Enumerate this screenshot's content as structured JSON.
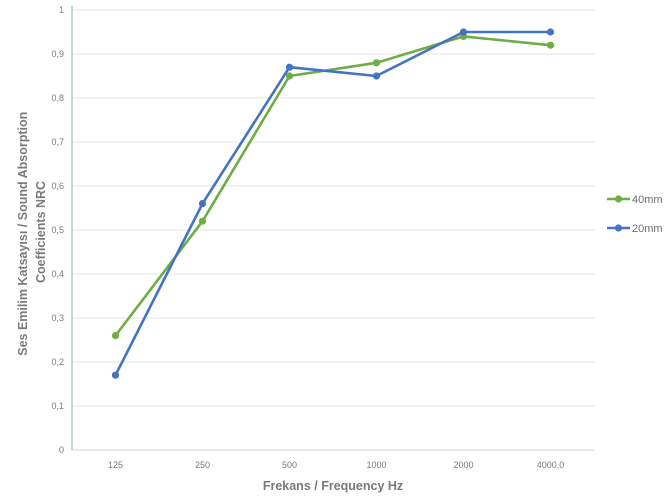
{
  "chart_data": {
    "type": "line",
    "categories": [
      "125",
      "250",
      "500",
      "1000",
      "2000",
      "4000,0"
    ],
    "series": [
      {
        "name": "40mm",
        "values": [
          0.26,
          0.52,
          0.85,
          0.88,
          0.94,
          0.92
        ],
        "color": "#6fac46"
      },
      {
        "name": "20mm",
        "values": [
          0.17,
          0.56,
          0.87,
          0.85,
          0.95,
          0.95
        ],
        "color": "#4472c4"
      }
    ],
    "xlabel": "Frekans / Frequency Hz",
    "ylabel_lines": [
      "Ses Emilim Katsayısı / Sound Absorption",
      "Coefficients NRC"
    ],
    "ylim": [
      0,
      1
    ],
    "yticks": [
      "0",
      "0,1",
      "0,2",
      "0,3",
      "0,4",
      "0,5",
      "0,6",
      "0,7",
      "0,8",
      "0,9",
      "1"
    ],
    "grid": true,
    "legend_position": "right"
  }
}
